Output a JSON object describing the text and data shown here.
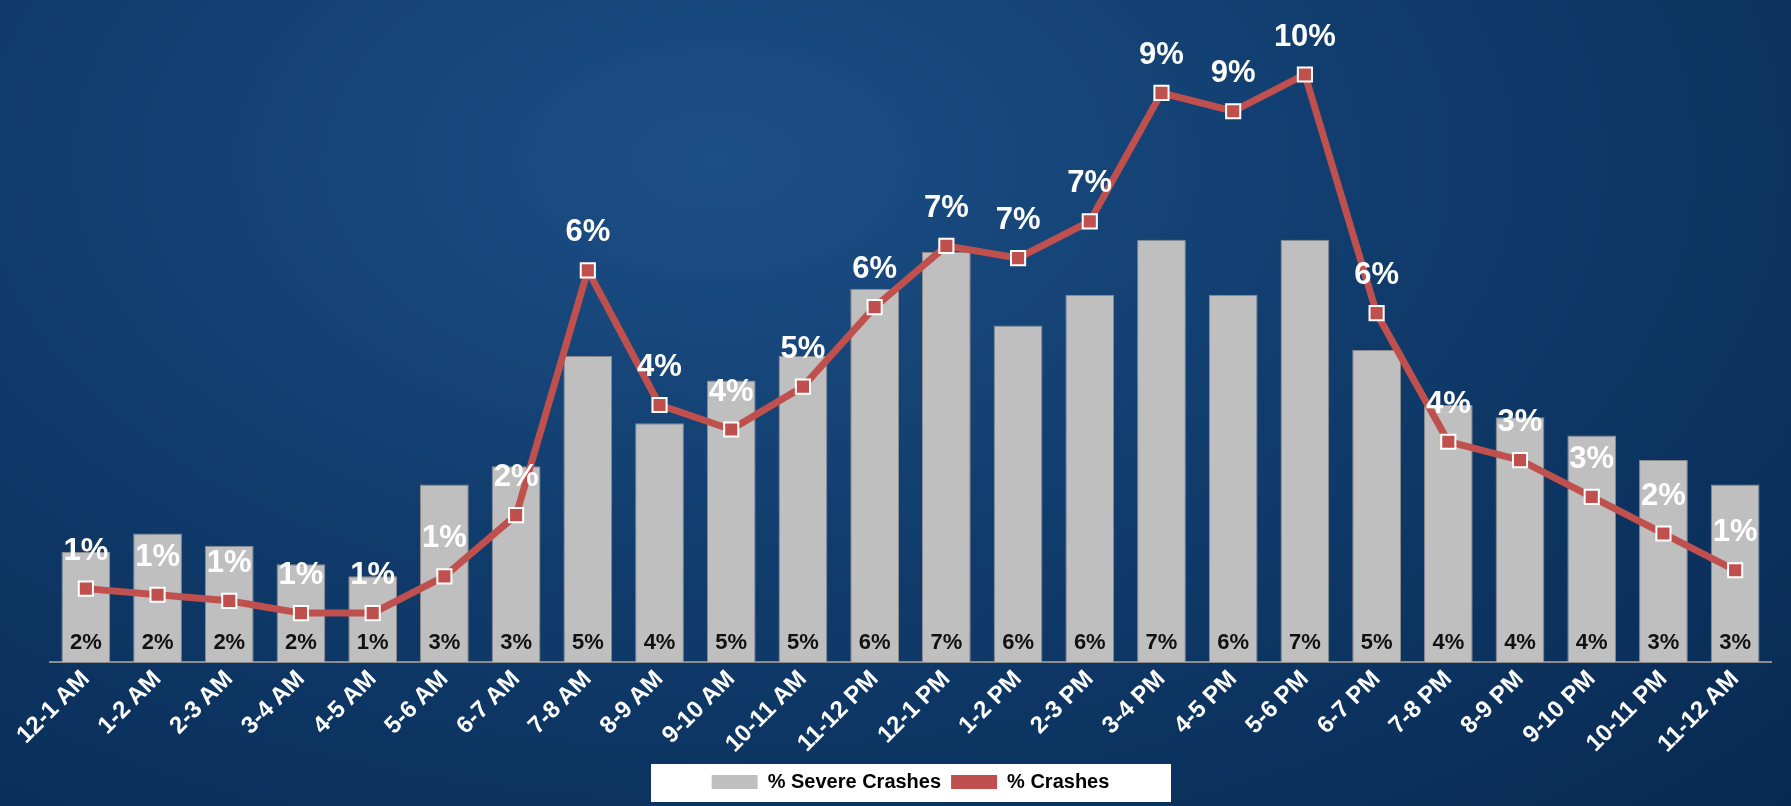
{
  "chart_data": {
    "type": "bar",
    "categories": [
      "12-1 AM",
      "1-2 AM",
      "2-3 AM",
      "3-4 AM",
      "4-5 AM",
      "5-6 AM",
      "6-7 AM",
      "7-8 AM",
      "8-9 AM",
      "9-10 AM",
      "10-11 AM",
      "11-12 PM",
      "12-1 PM",
      "1-2 PM",
      "2-3 PM",
      "3-4 PM",
      "4-5 PM",
      "5-6 PM",
      "6-7 PM",
      "7-8 PM",
      "8-9 PM",
      "9-10 PM",
      "10-11 PM",
      "11-12 AM"
    ],
    "series": [
      {
        "name": "% Severe Crashes",
        "color": "#bfbfbf",
        "values": [
          1.8,
          2.1,
          1.9,
          1.6,
          1.4,
          2.9,
          3.2,
          5.0,
          3.9,
          4.6,
          5.0,
          6.1,
          6.7,
          5.5,
          6.0,
          6.9,
          6.0,
          6.9,
          5.1,
          4.2,
          4.0,
          3.7,
          3.3,
          2.9
        ],
        "value_labels": [
          "2%",
          "2%",
          "2%",
          "2%",
          "1%",
          "3%",
          "3%",
          "5%",
          "4%",
          "5%",
          "5%",
          "6%",
          "7%",
          "6%",
          "6%",
          "7%",
          "6%",
          "7%",
          "5%",
          "4%",
          "4%",
          "4%",
          "3%",
          "3%"
        ]
      },
      {
        "name": "% Crashes",
        "type": "line",
        "color": "#c0504d",
        "marker": "square",
        "values": [
          1.2,
          1.1,
          1.0,
          0.8,
          0.8,
          1.4,
          2.4,
          6.4,
          4.2,
          3.8,
          4.5,
          5.8,
          6.8,
          6.6,
          7.2,
          9.3,
          9.0,
          9.6,
          5.7,
          3.6,
          3.3,
          2.7,
          2.1,
          1.5
        ],
        "value_labels": [
          "1%",
          "1%",
          "1%",
          "1%",
          "1%",
          "1%",
          "2%",
          "6%",
          "4%",
          "4%",
          "5%",
          "6%",
          "7%",
          "7%",
          "7%",
          "9%",
          "9%",
          "10%",
          "6%",
          "4%",
          "3%",
          "3%",
          "2%",
          "1%"
        ]
      }
    ],
    "legend": "bottom"
  }
}
